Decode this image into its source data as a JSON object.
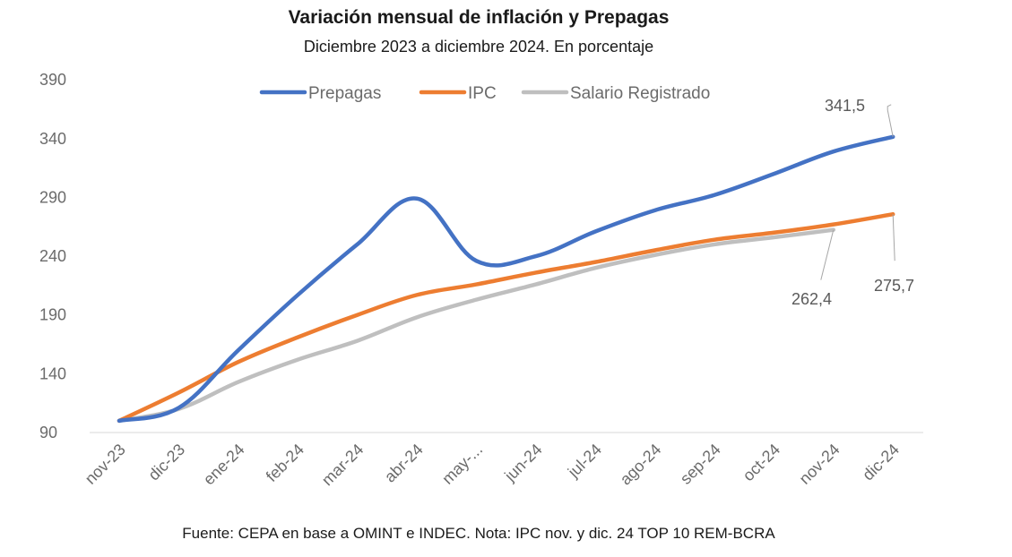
{
  "chart_data": {
    "type": "line",
    "title": "Variación mensual de inflación y Prepagas",
    "subtitle": "Diciembre 2023 a diciembre 2024. En porcentaje",
    "footer": "Fuente: CEPA en base a OMINT e INDEC. Nota: IPC nov. y dic. 24 TOP 10 REM-BCRA",
    "categories": [
      "nov-23",
      "dic-23",
      "ene-24",
      "feb-24",
      "mar-24",
      "abr-24",
      "may-...",
      "jun-24",
      "jul-24",
      "ago-24",
      "sep-24",
      "oct-24",
      "nov-24",
      "dic-24"
    ],
    "ylim": [
      90,
      390
    ],
    "yticks": [
      "90",
      "140",
      "190",
      "240",
      "290",
      "340",
      "390"
    ],
    "xlabel": "",
    "ylabel": "",
    "legend": "top",
    "series": [
      {
        "name": "Prepagas",
        "color": "#4472C4",
        "values": [
          100,
          111,
          160,
          207,
          250,
          289,
          236,
          240,
          261,
          279,
          292,
          310,
          329,
          341.5
        ]
      },
      {
        "name": "IPC",
        "color": "#ED7D31",
        "values": [
          100,
          124,
          150,
          171,
          190,
          207,
          216,
          226,
          235,
          245,
          254,
          260,
          267,
          275.7
        ]
      },
      {
        "name": "Salario Registrado",
        "color": "#BFBFBF",
        "values": [
          100,
          110,
          133,
          152,
          168,
          188,
          203,
          216,
          230,
          241,
          250,
          256,
          262.4,
          null
        ]
      }
    ],
    "data_labels": [
      {
        "series": "Prepagas",
        "index": 13,
        "text": "341,5"
      },
      {
        "series": "IPC",
        "index": 13,
        "text": "275,7"
      },
      {
        "series": "Salario Registrado",
        "index": 12,
        "text": "262,4"
      }
    ]
  }
}
